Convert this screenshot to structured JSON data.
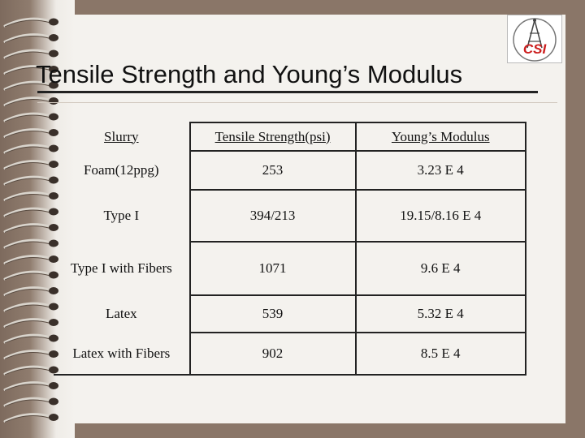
{
  "slide": {
    "title": "Tensile Strength and Young’s Modulus",
    "logo_text": "CSI"
  },
  "table": {
    "headers": [
      "Slurry",
      "Tensile Strength(psi)",
      "Young’s Modulus"
    ],
    "rows": [
      [
        "Foam(12ppg)",
        "253",
        "3.23 E 4"
      ],
      [
        "Type I",
        "394/213",
        "19.15/8.16 E 4"
      ],
      [
        "Type I with Fibers",
        "1071",
        "9.6 E 4"
      ],
      [
        "Latex",
        "539",
        "5.32 E 4"
      ],
      [
        "Latex with Fibers",
        "902",
        "8.5 E 4"
      ]
    ]
  },
  "colors": {
    "background": "#8a7668",
    "paper": "#f4f2ee",
    "logo_red": "#cc1f1f"
  },
  "icons": [
    "spiral-binding-icon",
    "csi-logo-icon"
  ]
}
